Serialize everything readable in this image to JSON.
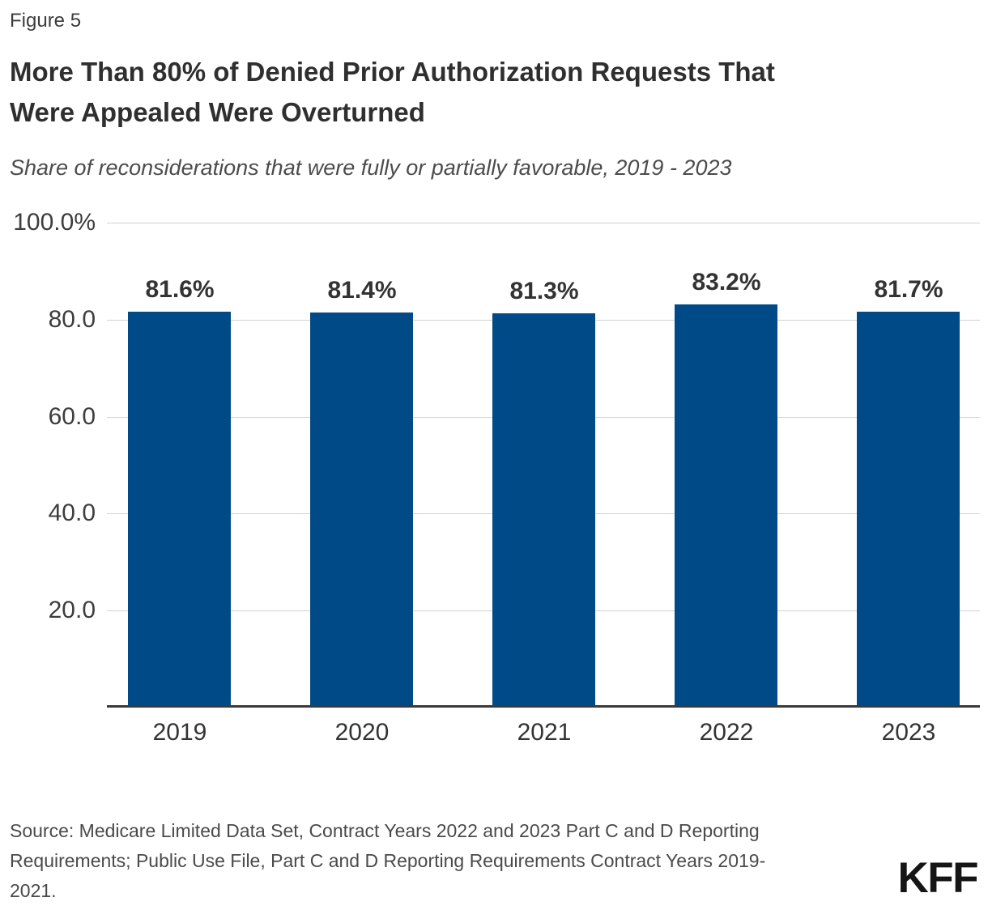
{
  "page": {
    "figure_label": "Figure 5",
    "title": "More Than 80% of Denied Prior Authorization Requests That Were Appealed Were Overturned",
    "title_lines": [
      "More Than 80% of Denied Prior Authorization Requests That",
      "Were Appealed Were Overturned"
    ],
    "subtitle": "Share of reconsiderations that were fully or partially favorable, 2019 - 2023",
    "source_lines": [
      "Source: Medicare Limited Data Set, Contract Years 2022 and 2023 Part C and D Reporting",
      "Requirements; Public Use File, Part C and D Reporting Requirements Contract Years 2019-",
      "2021."
    ],
    "source": "Source: Medicare Limited Data Set, Contract Years 2022 and 2023 Part C and D Reporting Requirements; Public Use File, Part C and D Reporting Requirements Contract Years 2019-2021.",
    "logo_text": "KFF"
  },
  "colors": {
    "bar": "#004b87",
    "axis": "#3a3a3a",
    "grid": "#d2d2d2",
    "text_dark": "#333333",
    "text_gray": "#4a4a4a"
  },
  "chart_data": {
    "type": "bar",
    "title": "More Than 80% of Denied Prior Authorization Requests That Were Appealed Were Overturned",
    "subtitle": "Share of reconsiderations that were fully or partially favorable, 2019 - 2023",
    "categories": [
      "2019",
      "2020",
      "2021",
      "2022",
      "2023"
    ],
    "values": [
      81.6,
      81.4,
      81.3,
      83.2,
      81.7
    ],
    "value_labels": [
      "81.6%",
      "81.4%",
      "81.3%",
      "83.2%",
      "81.7%"
    ],
    "xlabel": "",
    "ylabel": "",
    "ylim": [
      0,
      100
    ],
    "yticks": [
      {
        "value": 100,
        "label": "100.0%"
      },
      {
        "value": 80,
        "label": "80.0"
      },
      {
        "value": 60,
        "label": "60.0"
      },
      {
        "value": 40,
        "label": "40.0"
      },
      {
        "value": 20,
        "label": "20.0"
      }
    ],
    "grid": true,
    "legend": "none",
    "bar_color": "#004b87"
  }
}
